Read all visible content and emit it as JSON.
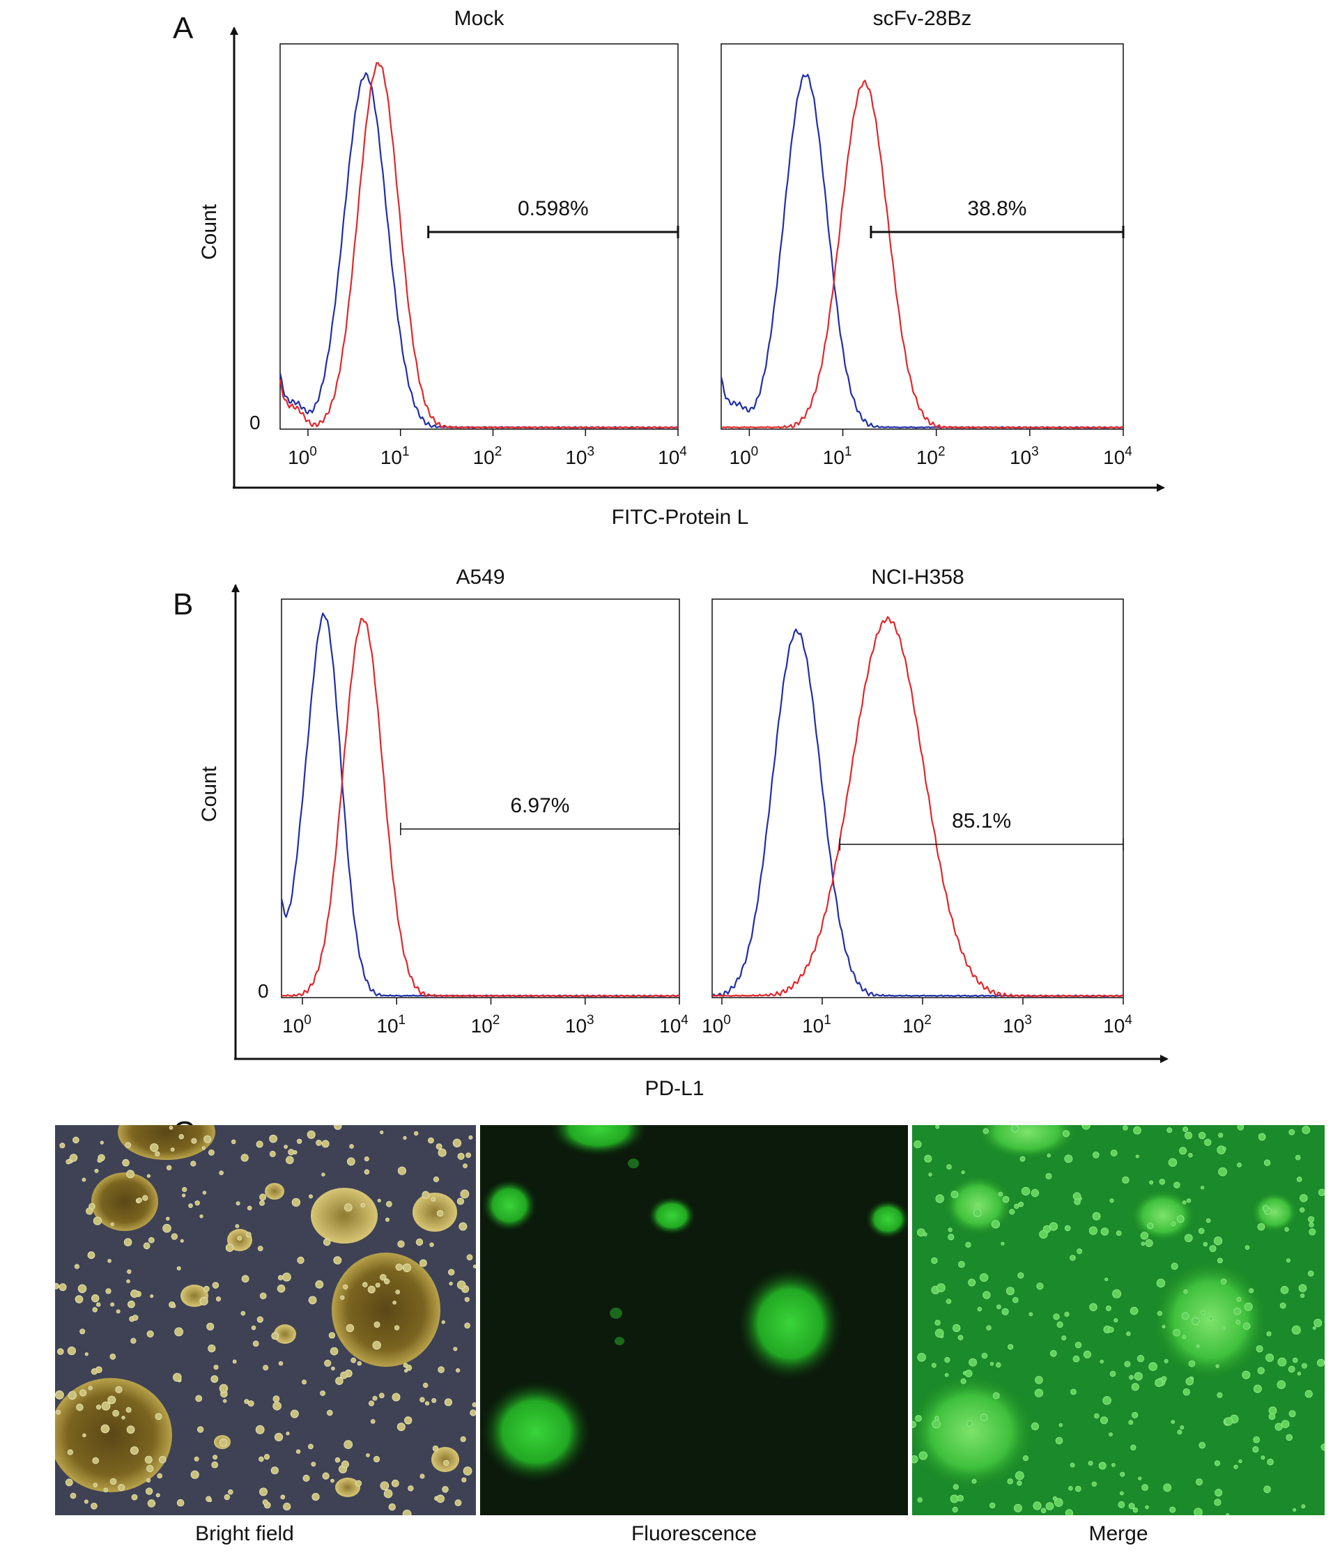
{
  "colors": {
    "control": "#1f2ea8",
    "stained": "#e3262a",
    "axis": "#111111"
  },
  "panels": {
    "A": {
      "letter": "A",
      "ylabel": "Count",
      "xlabel": "FITC-Protein L",
      "zero_label": "0",
      "arrow_axes": true
    },
    "B": {
      "letter": "B",
      "ylabel": "Count",
      "xlabel": "PD-L1",
      "zero_label": "0",
      "arrow_axes": true
    },
    "C": {
      "letter": "C",
      "images": [
        {
          "caption": "Bright field",
          "style": "bright-field"
        },
        {
          "caption": "Fluorescence",
          "style": "fluorescence"
        },
        {
          "caption": "Merge",
          "style": "merge"
        }
      ]
    }
  },
  "chart_data": [
    {
      "type": "line",
      "panel": "A",
      "title": "Mock",
      "x_scale": "log",
      "xlim": [
        0.5,
        10000
      ],
      "xticks": [
        1,
        10,
        100,
        1000,
        10000
      ],
      "tick_labels": [
        "10",
        "10",
        "10",
        "10",
        "10"
      ],
      "tick_exponents": [
        "0",
        "1",
        "2",
        "3",
        "4"
      ],
      "gate": {
        "start": 20,
        "end": 10000,
        "label": "0.598%"
      },
      "series": [
        {
          "color_role": "control",
          "peak_x": 4.2,
          "width_decades": 0.23,
          "peak_height": 0.92,
          "left_floor": 0.14
        },
        {
          "color_role": "stained",
          "peak_x": 5.8,
          "width_decades": 0.22,
          "peak_height": 0.95,
          "left_floor": 0.12
        }
      ]
    },
    {
      "type": "line",
      "panel": "A",
      "title": "scFv-28Bz",
      "x_scale": "log",
      "xlim": [
        0.5,
        10000
      ],
      "xticks": [
        1,
        10,
        100,
        1000,
        10000
      ],
      "tick_labels": [
        "10",
        "10",
        "10",
        "10",
        "10"
      ],
      "tick_exponents": [
        "0",
        "1",
        "2",
        "3",
        "4"
      ],
      "gate": {
        "start": 20,
        "end": 10000,
        "label": "38.8%"
      },
      "series": [
        {
          "color_role": "control",
          "peak_x": 4.0,
          "width_decades": 0.23,
          "peak_height": 0.92,
          "left_floor": 0.13
        },
        {
          "color_role": "stained",
          "peak_x": 17,
          "width_decades": 0.25,
          "peak_height": 0.9,
          "left_floor": 0.0
        }
      ]
    },
    {
      "type": "line",
      "panel": "B",
      "title": "A549",
      "x_scale": "log",
      "xlim": [
        0.6,
        10000
      ],
      "xticks": [
        1,
        10,
        100,
        1000,
        10000
      ],
      "tick_labels": [
        "10",
        "10",
        "10",
        "10",
        "10"
      ],
      "tick_exponents": [
        "0",
        "1",
        "2",
        "3",
        "4"
      ],
      "gate": {
        "start": 11,
        "end": 10000,
        "label": "6.97%"
      },
      "series": [
        {
          "color_role": "control",
          "peak_x": 1.7,
          "width_decades": 0.18,
          "peak_height": 0.96,
          "left_floor": 0.2
        },
        {
          "color_role": "stained",
          "peak_x": 4.4,
          "width_decades": 0.21,
          "peak_height": 0.95,
          "left_floor": 0.0
        }
      ]
    },
    {
      "type": "line",
      "panel": "B",
      "title": "NCI-H358",
      "x_scale": "log",
      "xlim": [
        0.8,
        10000
      ],
      "xticks": [
        1,
        10,
        100,
        1000,
        10000
      ],
      "tick_labels": [
        "10",
        "10",
        "10",
        "10",
        "10"
      ],
      "tick_exponents": [
        "0",
        "1",
        "2",
        "3",
        "4"
      ],
      "gate": {
        "start": 15,
        "end": 10000,
        "label": "85.1%"
      },
      "series": [
        {
          "color_role": "control",
          "peak_x": 5.6,
          "width_decades": 0.24,
          "peak_height": 0.92,
          "left_floor": 0.0
        },
        {
          "color_role": "stained",
          "peak_x": 45,
          "width_decades": 0.36,
          "peak_height": 0.95,
          "left_floor": 0.0
        }
      ]
    }
  ]
}
